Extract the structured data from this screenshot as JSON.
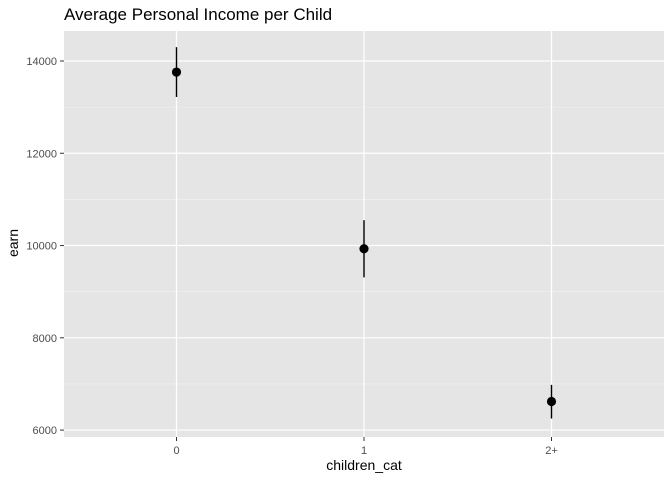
{
  "chart_data": {
    "type": "scatter",
    "title": "Average Personal Income per Child",
    "xlabel": "children_cat",
    "ylabel": "earn",
    "categories": [
      "0",
      "1",
      "2+"
    ],
    "series": [
      {
        "values": [
          13760,
          9930,
          6620
        ],
        "error_low": [
          13220,
          9310,
          6250
        ],
        "error_high": [
          14300,
          10550,
          6980
        ]
      }
    ],
    "ylim": [
      5850,
      14650
    ],
    "yticks": [
      6000,
      8000,
      10000,
      12000,
      14000
    ],
    "grid": true,
    "legend": "none",
    "colors": {
      "panel_background": "#e5e5e5",
      "grid_major": "#ffffff",
      "grid_minor": "#f2f2f2",
      "point": "#000000",
      "tick_text": "#4d4d4d",
      "title_text": "#000000"
    }
  }
}
